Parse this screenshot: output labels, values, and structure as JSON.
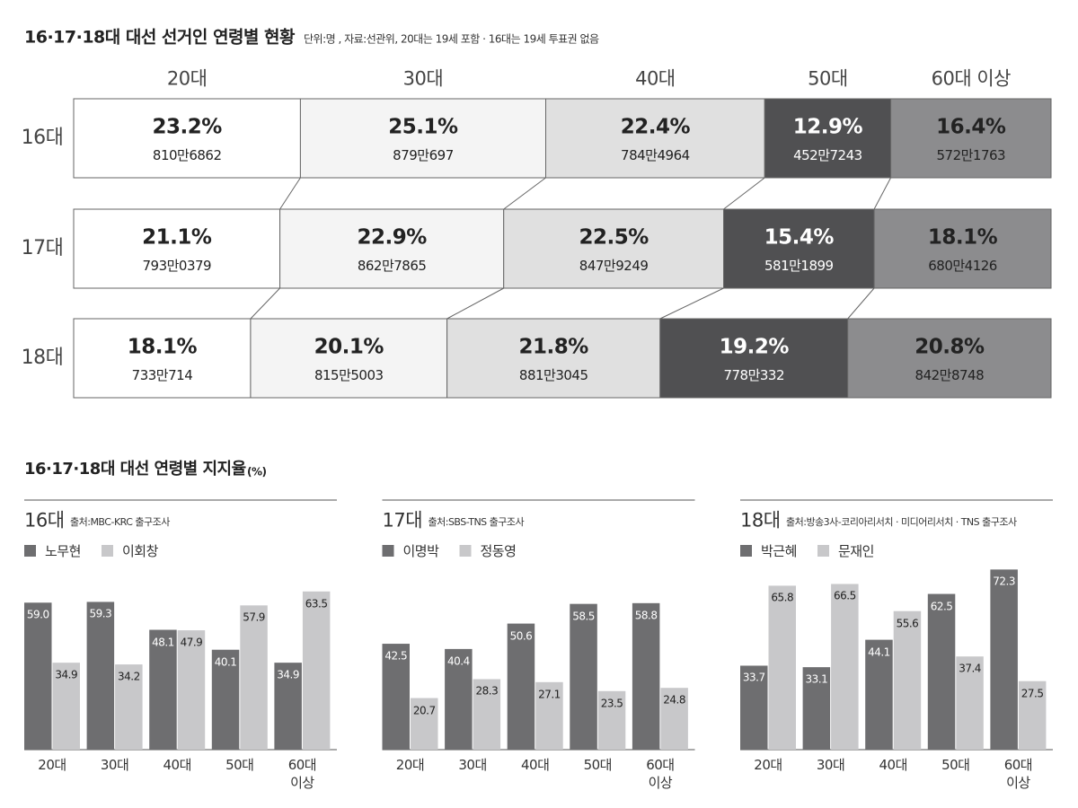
{
  "title": "16·17·18대 대선 선거인 연령별 현황",
  "subtitle": "단위:명 , 자료:선관위, 20대는 19세 포함 · 16대는 19세 투표권 없음",
  "section_title": "16·17·18대 대선 연령별 지지율",
  "section_unit": "(%)",
  "chart_data": [
    {
      "type": "stackedbar",
      "orientation": "horizontal",
      "categories": [
        "16대",
        "17대",
        "18대"
      ],
      "xlim": [
        0,
        100
      ],
      "series": [
        {
          "name": "20대",
          "color": "#ffffff",
          "values": [
            23.2,
            21.1,
            18.1
          ],
          "value_labels": [
            "23.2%",
            "21.1%",
            "18.1%"
          ],
          "count_labels": [
            "810만6862",
            "793만0379",
            "733만714"
          ]
        },
        {
          "name": "30대",
          "color": "#f4f4f4",
          "values": [
            25.1,
            22.9,
            20.1
          ],
          "value_labels": [
            "25.1%",
            "22.9%",
            "20.1%"
          ],
          "count_labels": [
            "879만697",
            "862만7865",
            "815만5003"
          ]
        },
        {
          "name": "40대",
          "color": "#e0e0e0",
          "values": [
            22.4,
            22.5,
            21.8
          ],
          "value_labels": [
            "22.4%",
            "22.5%",
            "21.8%"
          ],
          "count_labels": [
            "784만4964",
            "847만9249",
            "881만3045"
          ]
        },
        {
          "name": "50대",
          "color": "#505052",
          "values": [
            12.9,
            15.4,
            19.2
          ],
          "value_labels": [
            "12.9%",
            "15.4%",
            "19.2%"
          ],
          "count_labels": [
            "452만7243",
            "581만1899",
            "778만332"
          ]
        },
        {
          "name": "60대 이상",
          "color": "#8c8c8e",
          "values": [
            16.4,
            18.1,
            20.8
          ],
          "value_labels": [
            "16.4%",
            "18.1%",
            "20.8%"
          ],
          "count_labels": [
            "572만1763",
            "680만4126",
            "842만8748"
          ]
        }
      ]
    },
    {
      "type": "bar",
      "title": "16대",
      "subtitle": "출처:MBC-KRC 출구조사",
      "categories": [
        "20대",
        "30대",
        "40대",
        "50대",
        "60대 이상"
      ],
      "ylim": [
        0,
        80
      ],
      "series": [
        {
          "name": "노무현",
          "color": "#6e6e70",
          "values": [
            59.0,
            59.3,
            48.1,
            40.1,
            34.9
          ],
          "value_labels": [
            "59.0",
            "59.3",
            "48.1",
            "40.1",
            "34.9"
          ]
        },
        {
          "name": "이회창",
          "color": "#c8c8ca",
          "values": [
            34.9,
            34.2,
            47.9,
            57.9,
            63.5
          ],
          "value_labels": [
            "34.9",
            "34.2",
            "47.9",
            "57.9",
            "63.5"
          ]
        }
      ]
    },
    {
      "type": "bar",
      "title": "17대",
      "subtitle": "출처:SBS-TNS 출구조사",
      "categories": [
        "20대",
        "30대",
        "40대",
        "50대",
        "60대 이상"
      ],
      "ylim": [
        0,
        80
      ],
      "series": [
        {
          "name": "이명박",
          "color": "#6e6e70",
          "values": [
            42.5,
            40.4,
            50.6,
            58.5,
            58.8
          ],
          "value_labels": [
            "42.5",
            "40.4",
            "50.6",
            "58.5",
            "58.8"
          ]
        },
        {
          "name": "정동영",
          "color": "#c8c8ca",
          "values": [
            20.7,
            28.3,
            27.1,
            23.5,
            24.8
          ],
          "value_labels": [
            "20.7",
            "28.3",
            "27.1",
            "23.5",
            "24.8"
          ]
        }
      ]
    },
    {
      "type": "bar",
      "title": "18대",
      "subtitle": "출처:방송3사-코리아리서치 · 미디어리서치 · TNS 출구조사",
      "categories": [
        "20대",
        "30대",
        "40대",
        "50대",
        "60대 이상"
      ],
      "ylim": [
        0,
        80
      ],
      "series": [
        {
          "name": "박근혜",
          "color": "#6e6e70",
          "values": [
            33.7,
            33.1,
            44.1,
            62.5,
            72.3
          ],
          "value_labels": [
            "33.7",
            "33.1",
            "44.1",
            "62.5",
            "72.3"
          ]
        },
        {
          "name": "문재인",
          "color": "#c8c8ca",
          "values": [
            65.8,
            66.5,
            55.6,
            37.4,
            27.5
          ],
          "value_labels": [
            "65.8",
            "66.5",
            "55.6",
            "37.4",
            "27.5"
          ]
        }
      ]
    }
  ]
}
